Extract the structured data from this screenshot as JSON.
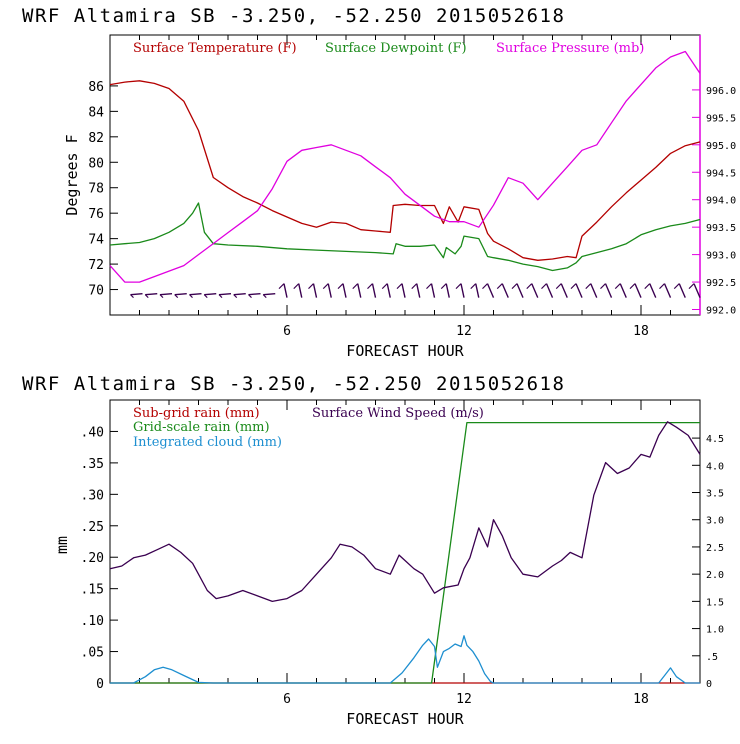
{
  "chart_data": [
    {
      "type": "line",
      "title": "WRF   Altamira  SB  -3.250, -52.250  2015052618",
      "xlabel": "FORECAST HOUR",
      "ylabel": "Degrees F",
      "xlim": [
        0,
        20
      ],
      "xticks": [
        6,
        12,
        18
      ],
      "ylim": [
        68,
        90
      ],
      "yticks": [
        70,
        72,
        74,
        76,
        78,
        80,
        82,
        84,
        86
      ],
      "y2lim": [
        991.9,
        997.0
      ],
      "y2ticks": [
        "992.0",
        "992.5",
        "993.0",
        "993.5",
        "994.0",
        "994.5",
        "995.0",
        "995.5",
        "996.0"
      ],
      "colors": {
        "temperature": "#b40000",
        "dewpoint": "#1a8a1a",
        "pressure": "#e000e0",
        "wind": "#3a0050",
        "axis_right": "#e000e0"
      },
      "legend": [
        "Surface Temperature (F)",
        "Surface Dewpoint (F)",
        "Surface Pressure (mb)"
      ],
      "series": [
        {
          "name": "Surface Temperature (F)",
          "axis": "left",
          "color": "#b40000",
          "x": [
            0,
            0.5,
            1,
            1.5,
            2,
            2.5,
            3,
            3.5,
            4,
            4.5,
            5,
            5.5,
            6,
            6.5,
            7,
            7.5,
            8,
            8.5,
            9,
            9.5,
            9.6,
            10,
            10.5,
            11,
            11.3,
            11.5,
            11.8,
            12,
            12.5,
            12.8,
            13,
            13.5,
            14,
            14.5,
            15,
            15.5,
            15.8,
            16,
            16.5,
            17,
            17.5,
            18,
            18.5,
            19,
            19.5,
            20
          ],
          "y": [
            86.1,
            86.3,
            86.4,
            86.2,
            85.8,
            84.8,
            82.5,
            78.8,
            78.0,
            77.3,
            76.8,
            76.2,
            75.7,
            75.2,
            74.9,
            75.3,
            75.2,
            74.7,
            74.6,
            74.5,
            76.6,
            76.7,
            76.6,
            76.6,
            75.2,
            76.5,
            75.3,
            76.5,
            76.3,
            74.4,
            73.8,
            73.2,
            72.5,
            72.3,
            72.4,
            72.6,
            72.5,
            74.2,
            75.3,
            76.5,
            77.6,
            78.6,
            79.6,
            80.7,
            81.3,
            81.6
          ]
        },
        {
          "name": "Surface Dewpoint (F)",
          "axis": "left",
          "color": "#1a8a1a",
          "x": [
            0,
            0.5,
            1,
            1.5,
            2,
            2.5,
            2.8,
            3.0,
            3.2,
            3.5,
            4,
            5,
            6,
            7,
            8,
            9,
            9.6,
            9.7,
            10,
            10.5,
            11,
            11.3,
            11.4,
            11.7,
            11.9,
            12,
            12.5,
            12.8,
            13,
            13.5,
            14,
            14.5,
            15,
            15.5,
            15.8,
            16,
            16.5,
            17,
            17.5,
            18,
            18.5,
            19,
            19.5,
            20
          ],
          "y": [
            73.5,
            73.6,
            73.7,
            74.0,
            74.5,
            75.2,
            76.0,
            76.8,
            74.5,
            73.6,
            73.5,
            73.4,
            73.2,
            73.1,
            73.0,
            72.9,
            72.8,
            73.6,
            73.4,
            73.4,
            73.5,
            72.5,
            73.3,
            72.8,
            73.4,
            74.2,
            74.0,
            72.6,
            72.5,
            72.3,
            72.0,
            71.8,
            71.5,
            71.7,
            72.1,
            72.6,
            72.9,
            73.2,
            73.6,
            74.3,
            74.7,
            75.0,
            75.2,
            75.5
          ]
        },
        {
          "name": "Surface Pressure (mb)",
          "axis": "right",
          "color": "#e000e0",
          "x": [
            0,
            0.5,
            1,
            1.5,
            2,
            2.5,
            3,
            3.5,
            4,
            4.5,
            5,
            5.5,
            6,
            6.5,
            7,
            7.5,
            8,
            8.5,
            9,
            9.5,
            10,
            10.5,
            11,
            11.5,
            12,
            12.5,
            13,
            13.5,
            14,
            14.5,
            15,
            15.5,
            16,
            16.5,
            17,
            17.5,
            18,
            18.5,
            19,
            19.5,
            20
          ],
          "y": [
            992.8,
            992.5,
            992.5,
            992.6,
            992.7,
            992.8,
            993.0,
            993.2,
            993.4,
            993.6,
            993.8,
            994.2,
            994.7,
            994.9,
            994.95,
            995.0,
            994.9,
            994.8,
            994.6,
            994.4,
            994.1,
            993.9,
            993.7,
            993.6,
            993.6,
            993.5,
            993.9,
            994.4,
            994.3,
            994.0,
            994.3,
            994.6,
            994.9,
            995.0,
            995.4,
            995.8,
            996.1,
            996.4,
            996.6,
            996.7,
            996.3
          ]
        }
      ],
      "wind_barbs_hours": [
        1,
        1.5,
        2,
        2.5,
        3,
        3.5,
        4,
        4.5,
        5,
        5.5,
        6,
        6.5,
        7,
        7.5,
        8,
        8.5,
        9,
        9.5,
        10,
        10.5,
        11,
        11.5,
        12,
        12.5,
        13,
        13.5,
        14,
        14.5,
        15,
        15.5,
        16,
        16.5,
        17,
        17.5,
        18,
        18.5,
        19,
        19.5,
        20
      ]
    },
    {
      "type": "line",
      "title": "WRF   Altamira  SB  -3.250, -52.250  2015052618",
      "xlabel": "FORECAST HOUR",
      "ylabel": "mm",
      "xlim": [
        0,
        20
      ],
      "xticks": [
        6,
        12,
        18
      ],
      "ylim": [
        0,
        0.45
      ],
      "yticks": [
        "0",
        ".05",
        ".10",
        ".15",
        ".20",
        ".25",
        ".30",
        ".35",
        ".40"
      ],
      "y2lim": [
        0,
        5.2
      ],
      "y2ticks": [
        "0",
        ".5",
        "1.0",
        "1.5",
        "2.0",
        "2.5",
        "3.0",
        "3.5",
        "4.0",
        "4.5"
      ],
      "legend": [
        "Sub-grid rain (mm)",
        "Grid-scale rain (mm)",
        "Integrated cloud (mm)",
        "Surface Wind Speed (m/s)"
      ],
      "series": [
        {
          "name": "Sub-grid rain (mm)",
          "axis": "left",
          "color": "#b40000",
          "x": [
            0,
            11.5,
            20
          ],
          "y": [
            0,
            0,
            0
          ]
        },
        {
          "name": "Grid-scale rain (mm)",
          "axis": "left",
          "color": "#1a8a1a",
          "x": [
            0,
            10.9,
            12.1,
            20
          ],
          "y": [
            0,
            0,
            0.414,
            0.414
          ]
        },
        {
          "name": "Integrated cloud (mm)",
          "axis": "left",
          "color": "#1e8fd0",
          "x": [
            0,
            0.8,
            1.2,
            1.5,
            1.8,
            2.1,
            2.5,
            3.0,
            3.5,
            9.5,
            9.9,
            10.3,
            10.6,
            10.8,
            11.0,
            11.1,
            11.3,
            11.5,
            11.7,
            11.9,
            12.0,
            12.1,
            12.3,
            12.5,
            12.7,
            12.9,
            13.0,
            13.5,
            18.6,
            18.8,
            19.0,
            19.2,
            19.5,
            20
          ],
          "y": [
            0,
            0,
            0.01,
            0.021,
            0.025,
            0.021,
            0.012,
            0.001,
            0,
            0,
            0.016,
            0.04,
            0.06,
            0.07,
            0.058,
            0.025,
            0.05,
            0.055,
            0.062,
            0.058,
            0.075,
            0.06,
            0.05,
            0.035,
            0.015,
            0.002,
            0,
            0,
            0,
            0.012,
            0.024,
            0.01,
            0,
            0
          ]
        },
        {
          "name": "Surface Wind Speed (m/s)",
          "axis": "right",
          "color": "#3a0050",
          "x": [
            0,
            0.4,
            0.8,
            1.2,
            1.6,
            2.0,
            2.4,
            2.8,
            3.0,
            3.3,
            3.6,
            4,
            4.5,
            5,
            5.5,
            6,
            6.5,
            7,
            7.5,
            7.8,
            8.2,
            8.6,
            9,
            9.5,
            9.8,
            10,
            10.3,
            10.6,
            11,
            11.3,
            11.8,
            12,
            12.2,
            12.5,
            12.8,
            13,
            13.3,
            13.6,
            14,
            14.5,
            15,
            15.3,
            15.6,
            16,
            16.4,
            16.8,
            17.2,
            17.6,
            18,
            18.3,
            18.6,
            18.9,
            19.2,
            19.6,
            20
          ],
          "y": [
            2.1,
            2.15,
            2.3,
            2.35,
            2.45,
            2.55,
            2.4,
            2.2,
            2.0,
            1.7,
            1.55,
            1.6,
            1.7,
            1.6,
            1.5,
            1.55,
            1.7,
            2.0,
            2.3,
            2.55,
            2.5,
            2.35,
            2.1,
            2.0,
            2.35,
            2.25,
            2.1,
            2.0,
            1.65,
            1.75,
            1.8,
            2.1,
            2.3,
            2.85,
            2.5,
            3.0,
            2.7,
            2.3,
            2.0,
            1.95,
            2.15,
            2.25,
            2.4,
            2.3,
            3.45,
            4.05,
            3.85,
            3.95,
            4.2,
            4.15,
            4.55,
            4.8,
            4.7,
            4.55,
            4.2
          ]
        }
      ]
    }
  ]
}
